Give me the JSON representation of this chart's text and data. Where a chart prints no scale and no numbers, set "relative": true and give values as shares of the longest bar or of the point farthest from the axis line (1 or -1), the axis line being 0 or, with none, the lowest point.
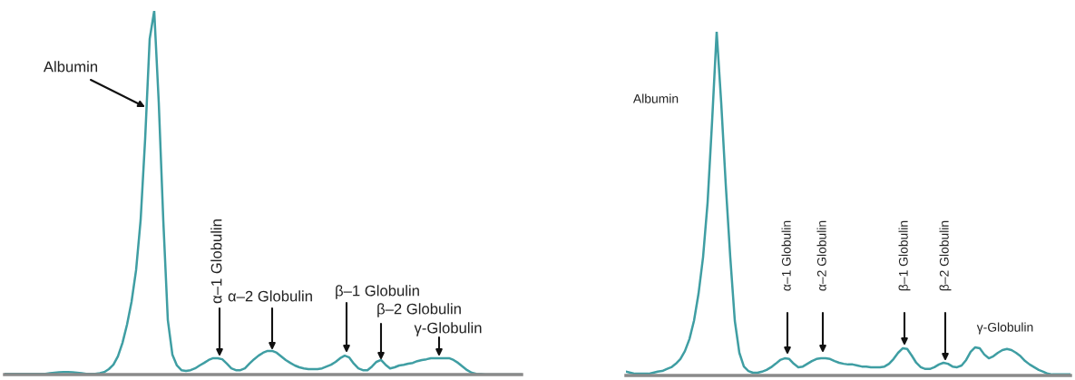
{
  "chart_data": [
    {
      "type": "line",
      "relative": true,
      "categories": [
        null,
        null,
        null,
        null,
        null,
        null,
        null,
        null,
        null,
        null,
        null,
        null,
        null,
        null,
        null,
        null,
        null,
        null,
        null,
        null,
        null,
        null,
        null,
        null,
        null,
        null,
        null,
        null,
        null,
        null,
        null,
        null,
        null,
        null,
        null,
        null,
        null,
        null,
        null,
        null,
        null,
        null,
        null,
        null,
        null,
        null,
        null,
        null,
        null,
        null,
        null,
        null,
        null,
        null,
        null,
        null,
        null,
        null,
        null,
        null,
        null,
        null,
        null,
        null,
        null,
        null,
        null,
        null,
        null,
        null,
        null,
        null,
        null,
        null,
        null,
        null,
        null,
        null,
        null,
        null,
        null,
        null,
        null,
        null,
        null,
        null,
        null,
        null,
        null,
        null,
        null,
        null,
        null,
        null,
        null,
        null,
        null,
        null,
        null,
        null,
        null,
        null,
        null,
        null,
        null,
        null,
        null,
        null,
        null,
        null,
        null,
        null,
        null,
        null,
        null
      ],
      "series": [
        {
          "color": "#3f9ea3",
          "values": [
            0.002,
            0.002,
            0.002,
            0.002,
            0.002,
            0.002,
            0.002,
            0.002,
            0.002,
            0.002,
            0.004,
            0.005,
            0.006,
            0.007,
            0.007,
            0.006,
            0.005,
            0.004,
            0.002,
            0.002,
            0.002,
            0.004,
            0.007,
            0.015,
            0.027,
            0.05,
            0.087,
            0.137,
            0.2,
            0.287,
            0.424,
            0.648,
            0.923,
            1,
            0.748,
            0.424,
            0.15,
            0.055,
            0.025,
            0.012,
            0.01,
            0.012,
            0.017,
            0.025,
            0.032,
            0.04,
            0.045,
            0.045,
            0.042,
            0.03,
            0.017,
            0.012,
            0.012,
            0.017,
            0.03,
            0.042,
            0.052,
            0.06,
            0.065,
            0.065,
            0.06,
            0.05,
            0.04,
            0.032,
            0.025,
            0.02,
            0.017,
            0.015,
            0.015,
            0.015,
            0.017,
            0.022,
            0.027,
            0.035,
            0.045,
            0.052,
            0.047,
            0.03,
            0.017,
            0.012,
            0.012,
            0.022,
            0.035,
            0.04,
            0.027,
            0.017,
            0.02,
            0.025,
            0.027,
            0.03,
            0.032,
            0.037,
            0.04,
            0.042,
            0.045,
            0.045,
            0.045,
            0.045,
            0.045,
            0.04,
            0.032,
            0.022,
            0.012,
            0.005,
            0.002,
            0.001,
            0,
            0,
            0,
            0,
            0,
            0,
            0,
            0,
            0
          ]
        }
      ],
      "annotations": [
        "Albumin",
        "α–1 Globulin",
        "α–2 Globulin",
        "β–1 Globulin",
        "β–2 Globulin",
        "γ-Globulin"
      ]
    },
    {
      "type": "line",
      "relative": true,
      "categories": [
        null,
        null,
        null,
        null,
        null,
        null,
        null,
        null,
        null,
        null,
        null,
        null,
        null,
        null,
        null,
        null,
        null,
        null,
        null,
        null,
        null,
        null,
        null,
        null,
        null,
        null,
        null,
        null,
        null,
        null,
        null,
        null,
        null,
        null,
        null,
        null,
        null,
        null,
        null,
        null,
        null,
        null,
        null,
        null,
        null,
        null,
        null,
        null,
        null,
        null,
        null,
        null,
        null,
        null,
        null,
        null,
        null,
        null,
        null,
        null,
        null,
        null,
        null,
        null,
        null,
        null,
        null,
        null,
        null,
        null,
        null,
        null,
        null,
        null,
        null,
        null,
        null,
        null,
        null,
        null,
        null,
        null,
        null,
        null,
        null,
        null,
        null,
        null,
        null,
        null,
        null,
        null,
        null,
        null,
        null,
        null,
        null,
        null,
        null
      ],
      "series": [
        {
          "color": "#3f9ea3",
          "values": [
            0.011,
            0.008,
            0.005,
            0.005,
            0.005,
            0.005,
            0.008,
            0.011,
            0.013,
            0.019,
            0.024,
            0.034,
            0.048,
            0.071,
            0.106,
            0.159,
            0.238,
            0.344,
            0.503,
            0.741,
            1,
            0.794,
            0.556,
            0.344,
            0.159,
            0.066,
            0.026,
            0.013,
            0.008,
            0.008,
            0.011,
            0.016,
            0.024,
            0.034,
            0.045,
            0.05,
            0.048,
            0.034,
            0.024,
            0.026,
            0.034,
            0.042,
            0.048,
            0.05,
            0.05,
            0.048,
            0.042,
            0.037,
            0.034,
            0.032,
            0.032,
            0.029,
            0.026,
            0.026,
            0.024,
            0.024,
            0.024,
            0.026,
            0.034,
            0.048,
            0.066,
            0.079,
            0.077,
            0.058,
            0.037,
            0.024,
            0.019,
            0.019,
            0.024,
            0.032,
            0.037,
            0.034,
            0.026,
            0.024,
            0.029,
            0.045,
            0.069,
            0.082,
            0.079,
            0.061,
            0.05,
            0.056,
            0.066,
            0.074,
            0.077,
            0.074,
            0.066,
            0.056,
            0.042,
            0.032,
            0.024,
            0.016,
            0.011,
            0.005,
            0.003,
            0.003,
            0.003,
            0.003,
            0.003
          ]
        }
      ],
      "annotations": [
        "Albumin",
        "α–1 Globulin",
        "α–2 Globulin",
        "β–1 Globulin",
        "β–2 Globulin",
        "γ-Globulin"
      ]
    }
  ]
}
